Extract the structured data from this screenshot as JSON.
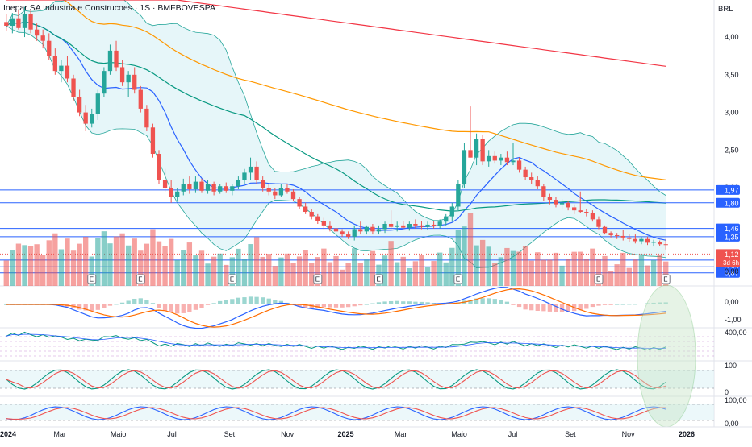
{
  "header": {
    "title": "Inepar SA Industria e Construcoes · 1S · BMFBOVESPA",
    "currency": "BRL"
  },
  "colors": {
    "up": "#26a69a",
    "down": "#ef5350",
    "hline": "#2962ff",
    "bb_fill": "#e0f4f7",
    "bb_line": "#26a69a",
    "sma_fast": "#2962ff",
    "sma_mid": "#089981",
    "sma_slow": "#ff9800",
    "sma_long": "#f23645",
    "macd": "#2962ff",
    "signal": "#ff6d00",
    "ellipse": "#c8e6c9"
  },
  "chart_data": {
    "type": "candlestick",
    "price_axis": {
      "ticks": [
        "4,00",
        "3,50",
        "3,00",
        "2,50",
        "2,00"
      ],
      "range": [
        0.75,
        4.3
      ]
    },
    "time_axis": {
      "labels": [
        "2024",
        "Mar",
        "Maio",
        "Jul",
        "Set",
        "Nov",
        "2025",
        "Mar",
        "Maio",
        "Jul",
        "Set",
        "Nov",
        "2026"
      ]
    },
    "candles": [
      [
        4.2,
        4.3,
        4.08,
        4.15
      ],
      [
        4.15,
        4.32,
        4.05,
        4.25
      ],
      [
        4.25,
        4.36,
        4.1,
        4.12
      ],
      [
        4.12,
        4.4,
        4.0,
        4.3
      ],
      [
        4.3,
        4.35,
        4.05,
        4.1
      ],
      [
        4.1,
        4.18,
        3.95,
        4.02
      ],
      [
        4.02,
        4.1,
        3.85,
        3.95
      ],
      [
        3.95,
        4.05,
        3.7,
        3.75
      ],
      [
        3.75,
        3.85,
        3.5,
        3.55
      ],
      [
        3.55,
        3.7,
        3.4,
        3.62
      ],
      [
        3.62,
        3.75,
        3.4,
        3.45
      ],
      [
        3.45,
        3.5,
        3.15,
        3.2
      ],
      [
        3.2,
        3.3,
        2.95,
        3.0
      ],
      [
        3.0,
        3.1,
        2.75,
        2.85
      ],
      [
        2.85,
        3.05,
        2.8,
        2.98
      ],
      [
        2.98,
        3.3,
        2.9,
        3.25
      ],
      [
        3.25,
        3.6,
        3.2,
        3.55
      ],
      [
        3.55,
        3.9,
        3.5,
        3.82
      ],
      [
        3.82,
        3.95,
        3.55,
        3.6
      ],
      [
        3.6,
        3.7,
        3.35,
        3.4
      ],
      [
        3.4,
        3.55,
        3.2,
        3.5
      ],
      [
        3.5,
        3.6,
        3.25,
        3.3
      ],
      [
        3.3,
        3.35,
        3.0,
        3.05
      ],
      [
        3.05,
        3.1,
        2.75,
        2.8
      ],
      [
        2.8,
        2.85,
        2.4,
        2.45
      ],
      [
        2.45,
        2.5,
        2.05,
        2.1
      ],
      [
        2.1,
        2.25,
        1.95,
        2.0
      ],
      [
        2.0,
        2.1,
        1.8,
        1.88
      ],
      [
        1.88,
        2.0,
        1.82,
        1.95
      ],
      [
        1.95,
        2.12,
        1.9,
        2.05
      ],
      [
        2.05,
        2.15,
        1.92,
        1.98
      ],
      [
        1.98,
        2.15,
        1.93,
        2.08
      ],
      [
        2.08,
        2.12,
        1.93,
        1.96
      ],
      [
        1.96,
        2.1,
        1.92,
        2.05
      ],
      [
        2.05,
        2.08,
        1.9,
        1.95
      ],
      [
        1.95,
        2.05,
        1.92,
        2.02
      ],
      [
        2.02,
        2.07,
        1.93,
        1.96
      ],
      [
        1.96,
        2.05,
        1.9,
        2.02
      ],
      [
        2.02,
        2.15,
        1.98,
        2.1
      ],
      [
        2.1,
        2.25,
        2.05,
        2.2
      ],
      [
        2.2,
        2.4,
        2.1,
        2.28
      ],
      [
        2.28,
        2.35,
        2.05,
        2.1
      ],
      [
        2.1,
        2.15,
        1.95,
        2.0
      ],
      [
        2.0,
        2.05,
        1.9,
        1.95
      ],
      [
        1.95,
        2.0,
        1.85,
        1.9
      ],
      [
        1.9,
        2.05,
        1.88,
        2.0
      ],
      [
        2.0,
        2.05,
        1.92,
        1.95
      ],
      [
        1.95,
        1.98,
        1.82,
        1.85
      ],
      [
        1.85,
        1.88,
        1.72,
        1.75
      ],
      [
        1.75,
        1.8,
        1.65,
        1.68
      ],
      [
        1.68,
        1.72,
        1.58,
        1.62
      ],
      [
        1.62,
        1.65,
        1.52,
        1.56
      ],
      [
        1.56,
        1.6,
        1.45,
        1.5
      ],
      [
        1.5,
        1.55,
        1.42,
        1.46
      ],
      [
        1.46,
        1.5,
        1.38,
        1.42
      ],
      [
        1.42,
        1.45,
        1.35,
        1.38
      ],
      [
        1.38,
        1.42,
        1.32,
        1.35
      ],
      [
        1.35,
        1.5,
        1.3,
        1.45
      ],
      [
        1.45,
        1.55,
        1.38,
        1.42
      ],
      [
        1.42,
        1.5,
        1.38,
        1.48
      ],
      [
        1.48,
        1.52,
        1.38,
        1.42
      ],
      [
        1.42,
        1.5,
        1.38,
        1.45
      ],
      [
        1.45,
        1.55,
        1.4,
        1.52
      ],
      [
        1.52,
        1.7,
        1.45,
        1.48
      ],
      [
        1.48,
        1.55,
        1.42,
        1.5
      ],
      [
        1.5,
        1.56,
        1.45,
        1.47
      ],
      [
        1.47,
        1.55,
        1.43,
        1.52
      ],
      [
        1.52,
        1.58,
        1.46,
        1.5
      ],
      [
        1.5,
        1.56,
        1.45,
        1.48
      ],
      [
        1.48,
        1.55,
        1.44,
        1.51
      ],
      [
        1.51,
        1.56,
        1.46,
        1.49
      ],
      [
        1.49,
        1.58,
        1.46,
        1.55
      ],
      [
        1.55,
        1.65,
        1.5,
        1.62
      ],
      [
        1.62,
        1.8,
        1.55,
        1.75
      ],
      [
        1.75,
        2.1,
        1.7,
        2.05
      ],
      [
        2.05,
        2.6,
        2.0,
        2.5
      ],
      [
        2.5,
        3.08,
        2.4,
        2.4
      ],
      [
        2.4,
        2.72,
        2.3,
        2.65
      ],
      [
        2.65,
        2.7,
        2.3,
        2.35
      ],
      [
        2.35,
        2.5,
        2.28,
        2.42
      ],
      [
        2.42,
        2.48,
        2.32,
        2.36
      ],
      [
        2.36,
        2.45,
        2.3,
        2.4
      ],
      [
        2.4,
        2.48,
        2.3,
        2.34
      ],
      [
        2.34,
        2.6,
        2.3,
        2.36
      ],
      [
        2.36,
        2.4,
        2.2,
        2.24
      ],
      [
        2.24,
        2.28,
        2.1,
        2.14
      ],
      [
        2.14,
        2.2,
        2.05,
        2.1
      ],
      [
        2.1,
        2.15,
        1.98,
        2.02
      ],
      [
        2.02,
        2.05,
        1.82,
        1.88
      ],
      [
        1.88,
        1.92,
        1.78,
        1.84
      ],
      [
        1.84,
        1.88,
        1.74,
        1.78
      ],
      [
        1.78,
        1.85,
        1.72,
        1.8
      ],
      [
        1.8,
        1.83,
        1.7,
        1.74
      ],
      [
        1.74,
        1.78,
        1.65,
        1.7
      ],
      [
        1.7,
        1.95,
        1.66,
        1.68
      ],
      [
        1.68,
        1.72,
        1.62,
        1.66
      ],
      [
        1.66,
        1.7,
        1.55,
        1.58
      ],
      [
        1.58,
        1.62,
        1.45,
        1.48
      ],
      [
        1.48,
        1.5,
        1.38,
        1.4
      ],
      [
        1.4,
        1.42,
        1.34,
        1.37
      ],
      [
        1.37,
        1.4,
        1.32,
        1.36
      ],
      [
        1.36,
        1.44,
        1.3,
        1.34
      ],
      [
        1.34,
        1.38,
        1.28,
        1.32
      ],
      [
        1.32,
        1.38,
        1.26,
        1.29
      ],
      [
        1.29,
        1.35,
        1.25,
        1.32
      ],
      [
        1.32,
        1.35,
        1.24,
        1.27
      ],
      [
        1.27,
        1.31,
        1.22,
        1.28
      ],
      [
        1.28,
        1.3,
        1.23,
        1.25
      ],
      [
        1.25,
        1.32,
        1.18,
        1.24
      ]
    ],
    "price_lines": [
      {
        "value": 1.97,
        "label": "1,97"
      },
      {
        "value": 1.8,
        "label": "1,80"
      },
      {
        "value": 1.46,
        "label": "1,46"
      },
      {
        "value": 1.35,
        "label": "1,35"
      },
      {
        "value": 1.04,
        "label": "1,04"
      },
      {
        "value": 0.95,
        "label": "0,95"
      },
      {
        "value": 0.87,
        "label": "0,87"
      }
    ],
    "last_price": {
      "value": 1.12,
      "label": "1,12",
      "countdown": "3d 6h"
    },
    "volume": {
      "zero_label": "0,00",
      "earnings_marker": "E",
      "earnings_at": [
        14,
        22,
        37,
        51,
        61,
        74,
        97,
        108
      ]
    },
    "macd_pane": {
      "ticks": [
        "0,00",
        "-1,00"
      ]
    },
    "pane3": {
      "ticks": [
        "400,00"
      ]
    },
    "pane4": {
      "ticks": [
        "100",
        "0"
      ]
    },
    "pane5": {
      "ticks": [
        "100,00",
        "0,00"
      ]
    }
  }
}
